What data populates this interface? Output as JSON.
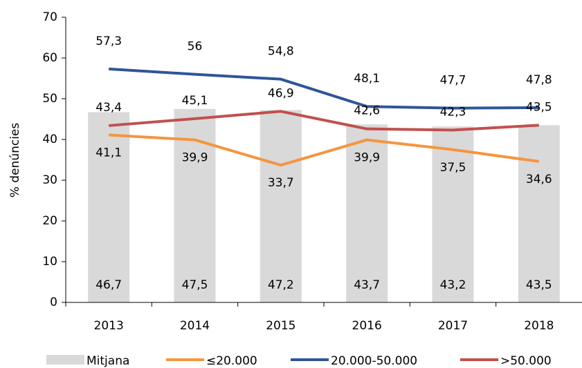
{
  "chart_data": {
    "type": "combo",
    "categories": [
      "2013",
      "2014",
      "2015",
      "2016",
      "2017",
      "2018"
    ],
    "y_label": "% denúncies",
    "ylim": [
      0,
      70
    ],
    "yticks": [
      0,
      10,
      20,
      30,
      40,
      50,
      60,
      70
    ],
    "grid": false,
    "legend": "bottom",
    "series": [
      {
        "name": "Mitjana",
        "type": "bar",
        "color": "#d9d9d9",
        "label_color": "#000000",
        "values": [
          46.7,
          47.5,
          47.2,
          43.7,
          43.2,
          43.5
        ],
        "value_labels": [
          "46,7",
          "47,5",
          "47,2",
          "43,7",
          "43,2",
          "43,5"
        ]
      },
      {
        "name": "≤20.000",
        "type": "line",
        "color": "#f5953f",
        "label_color": "#ea882e",
        "values": [
          41.1,
          39.9,
          33.7,
          39.9,
          37.5,
          34.6
        ],
        "value_labels": [
          "41,1",
          "39,9",
          "33,7",
          "39,9",
          "37,5",
          "34,6"
        ]
      },
      {
        "name": "20.000-50.000",
        "type": "line",
        "color": "#2f5597",
        "label_color": "#4a6b9d",
        "values": [
          57.3,
          56,
          54.8,
          48.1,
          47.7,
          47.8
        ],
        "value_labels": [
          "57,3",
          "56",
          "54,8",
          "48,1",
          "47,7",
          "47,8"
        ]
      },
      {
        "name": ">50.000",
        "type": "line",
        "color": "#c0504d",
        "label_color": "#a8423e",
        "values": [
          43.4,
          45.1,
          46.9,
          42.6,
          42.3,
          43.5
        ],
        "value_labels": [
          "43,4",
          "45,1",
          "46,9",
          "42,6",
          "42,3",
          "43,5"
        ]
      }
    ]
  }
}
